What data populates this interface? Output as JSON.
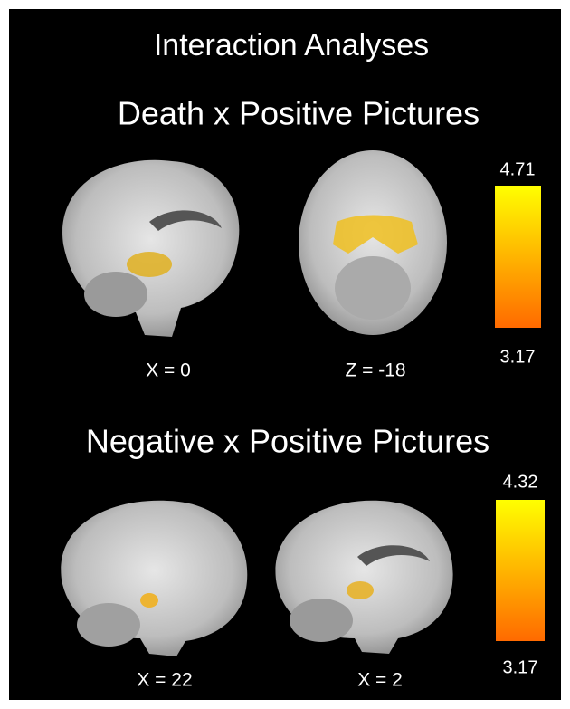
{
  "title": "Interaction Analyses",
  "panels": [
    {
      "subtitle": "Death x Positive Pictures",
      "images": [
        {
          "label": "X = 0"
        },
        {
          "label": "Z = -18"
        }
      ],
      "colorbar": {
        "max": "4.71",
        "min": "3.17"
      }
    },
    {
      "subtitle": "Negative x Positive Pictures",
      "images": [
        {
          "label": "X = 22"
        },
        {
          "label": "X = 2"
        }
      ],
      "colorbar": {
        "max": "4.32",
        "min": "3.17"
      }
    }
  ]
}
